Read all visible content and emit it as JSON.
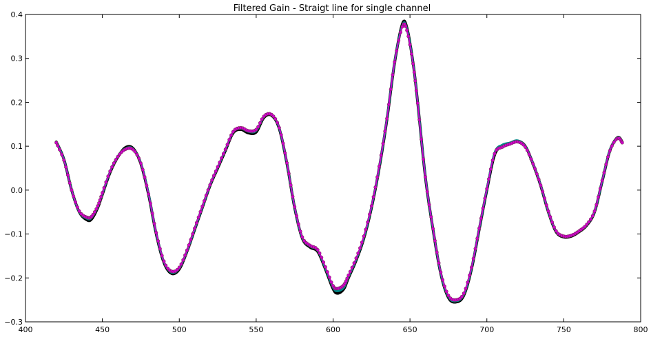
{
  "chart_data": {
    "type": "line",
    "title": "Filtered Gain - Straigt line for single channel",
    "xlabel": "",
    "ylabel": "",
    "xlim": [
      400,
      800
    ],
    "ylim": [
      -0.3,
      0.4
    ],
    "xticks": [
      400,
      450,
      500,
      550,
      600,
      650,
      700,
      750,
      800
    ],
    "yticks": [
      -0.3,
      -0.2,
      -0.1,
      0.0,
      0.1,
      0.2,
      0.3,
      0.4
    ],
    "ytick_labels": [
      "−0.3",
      "−0.2",
      "−0.1",
      "0.0",
      "0.1",
      "0.2",
      "0.3",
      "0.4"
    ],
    "grid": false,
    "legend": "none",
    "series": [
      {
        "color": "#000000",
        "points": [
          [
            420,
            0.11
          ],
          [
            425,
            0.07
          ],
          [
            430,
            0.0
          ],
          [
            435,
            -0.05
          ],
          [
            440,
            -0.068
          ],
          [
            443,
            -0.066
          ],
          [
            447,
            -0.04
          ],
          [
            450,
            -0.01
          ],
          [
            455,
            0.04
          ],
          [
            460,
            0.075
          ],
          [
            465,
            0.097
          ],
          [
            470,
            0.095
          ],
          [
            475,
            0.06
          ],
          [
            480,
            -0.01
          ],
          [
            485,
            -0.1
          ],
          [
            490,
            -0.165
          ],
          [
            495,
            -0.19
          ],
          [
            500,
            -0.18
          ],
          [
            505,
            -0.14
          ],
          [
            510,
            -0.09
          ],
          [
            515,
            -0.04
          ],
          [
            520,
            0.01
          ],
          [
            525,
            0.05
          ],
          [
            530,
            0.09
          ],
          [
            535,
            0.13
          ],
          [
            540,
            0.138
          ],
          [
            545,
            0.13
          ],
          [
            550,
            0.132
          ],
          [
            555,
            0.165
          ],
          [
            560,
            0.17
          ],
          [
            565,
            0.14
          ],
          [
            570,
            0.06
          ],
          [
            575,
            -0.04
          ],
          [
            580,
            -0.11
          ],
          [
            585,
            -0.13
          ],
          [
            590,
            -0.14
          ],
          [
            595,
            -0.18
          ],
          [
            600,
            -0.225
          ],
          [
            603,
            -0.235
          ],
          [
            607,
            -0.225
          ],
          [
            610,
            -0.2
          ],
          [
            615,
            -0.16
          ],
          [
            620,
            -0.11
          ],
          [
            625,
            -0.04
          ],
          [
            630,
            0.05
          ],
          [
            635,
            0.16
          ],
          [
            640,
            0.29
          ],
          [
            645,
            0.378
          ],
          [
            648,
            0.37
          ],
          [
            652,
            0.29
          ],
          [
            655,
            0.2
          ],
          [
            660,
            0.03
          ],
          [
            665,
            -0.09
          ],
          [
            670,
            -0.19
          ],
          [
            675,
            -0.245
          ],
          [
            680,
            -0.255
          ],
          [
            685,
            -0.24
          ],
          [
            690,
            -0.18
          ],
          [
            695,
            -0.09
          ],
          [
            700,
            0.0
          ],
          [
            705,
            0.08
          ],
          [
            710,
            0.1
          ],
          [
            715,
            0.107
          ],
          [
            720,
            0.112
          ],
          [
            725,
            0.1
          ],
          [
            730,
            0.06
          ],
          [
            735,
            0.01
          ],
          [
            740,
            -0.05
          ],
          [
            745,
            -0.095
          ],
          [
            750,
            -0.107
          ],
          [
            755,
            -0.105
          ],
          [
            760,
            -0.095
          ],
          [
            765,
            -0.08
          ],
          [
            770,
            -0.05
          ],
          [
            775,
            0.02
          ],
          [
            780,
            0.09
          ],
          [
            785,
            0.12
          ],
          [
            788,
            0.11
          ]
        ]
      },
      {
        "color": "#008b8b",
        "points": [
          [
            420,
            0.11
          ],
          [
            425,
            0.07
          ],
          [
            430,
            0.0
          ],
          [
            435,
            -0.05
          ],
          [
            440,
            -0.065
          ],
          [
            443,
            -0.063
          ],
          [
            447,
            -0.038
          ],
          [
            450,
            -0.008
          ],
          [
            455,
            0.042
          ],
          [
            460,
            0.077
          ],
          [
            465,
            0.095
          ],
          [
            470,
            0.094
          ],
          [
            475,
            0.062
          ],
          [
            480,
            -0.008
          ],
          [
            485,
            -0.098
          ],
          [
            490,
            -0.163
          ],
          [
            495,
            -0.188
          ],
          [
            500,
            -0.178
          ],
          [
            505,
            -0.139
          ],
          [
            510,
            -0.089
          ],
          [
            515,
            -0.039
          ],
          [
            520,
            0.011
          ],
          [
            525,
            0.052
          ],
          [
            530,
            0.092
          ],
          [
            535,
            0.132
          ],
          [
            540,
            0.14
          ],
          [
            545,
            0.133
          ],
          [
            550,
            0.135
          ],
          [
            555,
            0.167
          ],
          [
            560,
            0.171
          ],
          [
            565,
            0.141
          ],
          [
            570,
            0.061
          ],
          [
            575,
            -0.039
          ],
          [
            580,
            -0.109
          ],
          [
            585,
            -0.128
          ],
          [
            590,
            -0.138
          ],
          [
            595,
            -0.178
          ],
          [
            600,
            -0.222
          ],
          [
            603,
            -0.23
          ],
          [
            607,
            -0.222
          ],
          [
            610,
            -0.198
          ],
          [
            615,
            -0.158
          ],
          [
            620,
            -0.108
          ],
          [
            625,
            -0.038
          ],
          [
            630,
            0.052
          ],
          [
            635,
            0.162
          ],
          [
            640,
            0.292
          ],
          [
            645,
            0.375
          ],
          [
            648,
            0.368
          ],
          [
            652,
            0.29
          ],
          [
            655,
            0.2
          ],
          [
            660,
            0.031
          ],
          [
            665,
            -0.089
          ],
          [
            670,
            -0.189
          ],
          [
            675,
            -0.243
          ],
          [
            680,
            -0.253
          ],
          [
            685,
            -0.238
          ],
          [
            690,
            -0.178
          ],
          [
            695,
            -0.088
          ],
          [
            700,
            0.002
          ],
          [
            705,
            0.085
          ],
          [
            710,
            0.103
          ],
          [
            715,
            0.108
          ],
          [
            720,
            0.113
          ],
          [
            725,
            0.1
          ],
          [
            730,
            0.061
          ],
          [
            735,
            0.011
          ],
          [
            740,
            -0.049
          ],
          [
            745,
            -0.094
          ],
          [
            750,
            -0.106
          ],
          [
            755,
            -0.104
          ],
          [
            760,
            -0.094
          ],
          [
            765,
            -0.079
          ],
          [
            770,
            -0.049
          ],
          [
            775,
            0.021
          ],
          [
            780,
            0.091
          ],
          [
            785,
            0.12
          ],
          [
            788,
            0.11
          ]
        ]
      },
      {
        "color": "#cc00cc",
        "marker": "circle",
        "points": [
          [
            420,
            0.108
          ],
          [
            425,
            0.068
          ],
          [
            430,
            0.0
          ],
          [
            435,
            -0.048
          ],
          [
            440,
            -0.062
          ],
          [
            443,
            -0.06
          ],
          [
            447,
            -0.036
          ],
          [
            450,
            -0.006
          ],
          [
            455,
            0.043
          ],
          [
            460,
            0.076
          ],
          [
            465,
            0.093
          ],
          [
            470,
            0.092
          ],
          [
            475,
            0.061
          ],
          [
            480,
            -0.009
          ],
          [
            485,
            -0.097
          ],
          [
            490,
            -0.162
          ],
          [
            495,
            -0.185
          ],
          [
            500,
            -0.176
          ],
          [
            505,
            -0.137
          ],
          [
            510,
            -0.087
          ],
          [
            515,
            -0.037
          ],
          [
            520,
            0.012
          ],
          [
            525,
            0.053
          ],
          [
            530,
            0.093
          ],
          [
            535,
            0.133
          ],
          [
            540,
            0.142
          ],
          [
            545,
            0.135
          ],
          [
            550,
            0.138
          ],
          [
            555,
            0.168
          ],
          [
            560,
            0.172
          ],
          [
            565,
            0.142
          ],
          [
            570,
            0.062
          ],
          [
            575,
            -0.038
          ],
          [
            580,
            -0.107
          ],
          [
            585,
            -0.126
          ],
          [
            590,
            -0.136
          ],
          [
            595,
            -0.175
          ],
          [
            600,
            -0.218
          ],
          [
            603,
            -0.224
          ],
          [
            607,
            -0.216
          ],
          [
            610,
            -0.194
          ],
          [
            615,
            -0.155
          ],
          [
            620,
            -0.105
          ],
          [
            625,
            -0.036
          ],
          [
            630,
            0.054
          ],
          [
            635,
            0.163
          ],
          [
            640,
            0.292
          ],
          [
            645,
            0.372
          ],
          [
            648,
            0.364
          ],
          [
            652,
            0.288
          ],
          [
            655,
            0.198
          ],
          [
            660,
            0.03
          ],
          [
            665,
            -0.088
          ],
          [
            670,
            -0.187
          ],
          [
            675,
            -0.24
          ],
          [
            680,
            -0.25
          ],
          [
            685,
            -0.235
          ],
          [
            690,
            -0.176
          ],
          [
            695,
            -0.087
          ],
          [
            700,
            0.003
          ],
          [
            705,
            0.083
          ],
          [
            710,
            0.098
          ],
          [
            715,
            0.105
          ],
          [
            720,
            0.11
          ],
          [
            725,
            0.098
          ],
          [
            730,
            0.06
          ],
          [
            735,
            0.011
          ],
          [
            740,
            -0.048
          ],
          [
            745,
            -0.093
          ],
          [
            750,
            -0.105
          ],
          [
            755,
            -0.103
          ],
          [
            760,
            -0.093
          ],
          [
            765,
            -0.078
          ],
          [
            770,
            -0.048
          ],
          [
            775,
            0.022
          ],
          [
            780,
            0.09
          ],
          [
            785,
            0.118
          ],
          [
            788,
            0.108
          ]
        ]
      }
    ]
  }
}
